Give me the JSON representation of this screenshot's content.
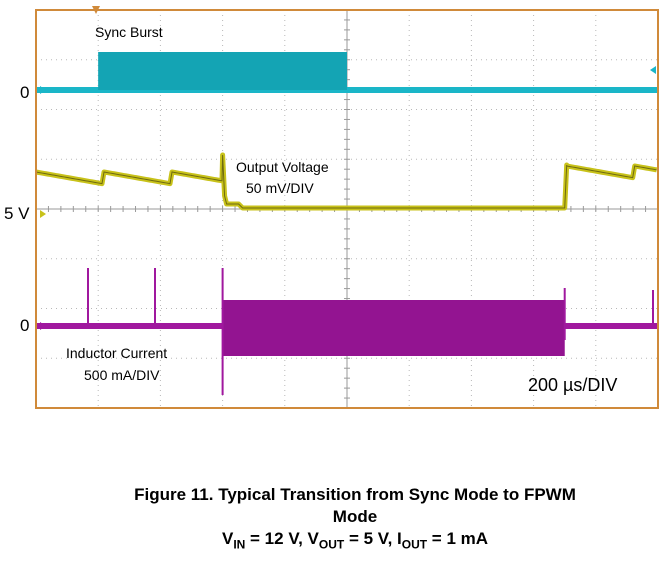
{
  "chart_data": {
    "type": "line",
    "title": "",
    "timebase": "200 µs/DIV",
    "grid": true,
    "divisions": {
      "x": 10,
      "y": 8
    },
    "series": [
      {
        "name": "Sync Burst",
        "color": "#1ab6c8",
        "ground_label": "0",
        "burst": {
          "start_div": 1.0,
          "end_div": 5.0
        }
      },
      {
        "name": "Output Voltage",
        "scale": "50 mV/DIV",
        "color": "#c8c21a",
        "ground_label": "5 V"
      },
      {
        "name": "Inductor Current",
        "scale": "500 mA/DIV",
        "color": "#a0189e",
        "ground_label": "0",
        "burst": {
          "start_div": 3.0,
          "end_div": 8.5
        }
      }
    ]
  },
  "labels": {
    "sync_name": "Sync Burst",
    "vout_name": "Output Voltage",
    "vout_scale": "50 mV/DIV",
    "il_name": "Inductor Current",
    "il_scale": "500 mA/DIV",
    "timebase": "200 µs/DIV",
    "ch1_ground": "0",
    "ch2_ground": "5 V",
    "ch3_ground": "0"
  },
  "caption": {
    "line1": "Figure 11. Typical Transition from Sync Mode to FPWM",
    "line2": "Mode",
    "vin_sub": "IN",
    "vin_val": " = 12 V, V",
    "vout_sub": "OUT",
    "vout_val": " = 5 V, I",
    "iout_sub": "OUT",
    "iout_val": " = 1 mA"
  }
}
